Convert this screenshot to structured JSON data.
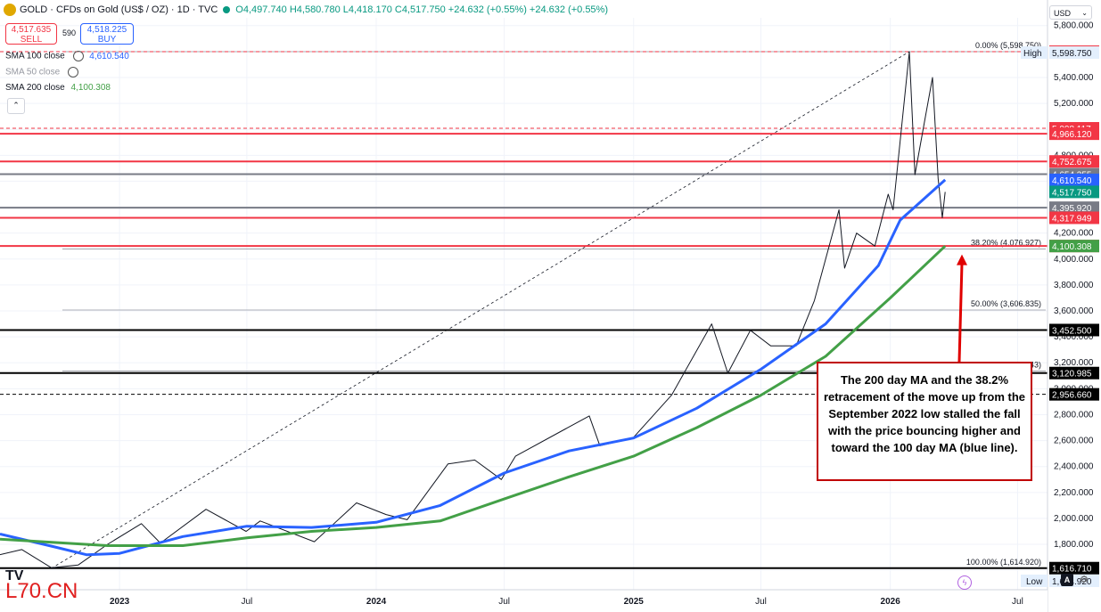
{
  "header": {
    "symbol_line": "GOLD · CFDs on Gold (US$ / OZ) · 1D · TVC",
    "ohlc": "O4,497.740 H4,580.780 L4,418.170 C4,517.750 +24.632 (+0.55%) +24.632 (+0.55%)",
    "sell_price": "4,517.635",
    "sell_label": "SELL",
    "spread": "590",
    "buy_price": "4,518.225",
    "buy_label": "BUY",
    "currency": "USD"
  },
  "indicators": [
    {
      "label": "SMA 100 close",
      "value": "4,610.540",
      "color": "#2962ff",
      "icon": "settings-icon"
    },
    {
      "label": "SMA 50 close",
      "value": "",
      "color": "#9598a1",
      "icon": "eye-off-icon"
    },
    {
      "label": "SMA 200 close",
      "value": "4,100.308",
      "color": "#43a047",
      "icon": ""
    }
  ],
  "annotation": "The 200 day MA and the 38.2% retracement of the move up from the September 2022 low stalled the fall with the price bouncing higher and toward the 100 day MA (blue line).",
  "watermark": "L70.CN",
  "logo_text": "TV",
  "colors": {
    "red": "#f23645",
    "blue": "#2962ff",
    "green": "#43a047",
    "black": "#000000",
    "grey": "#787b86"
  },
  "chart_data": {
    "type": "line",
    "title": "GOLD · CFDs on Gold (US$ / OZ) · 1D · TVC",
    "x_ticks": [
      "2023",
      "Jul",
      "2024",
      "Jul",
      "2025",
      "Jul",
      "2026",
      "Jul"
    ],
    "x_ticks_date": [
      "2023-01-01",
      "2023-07-01",
      "2024-01-01",
      "2024-07-01",
      "2025-01-01",
      "2025-07-01",
      "2026-01-01",
      "2026-07-01"
    ],
    "x_range": [
      "2022-07-15",
      "2026-08-10"
    ],
    "y_ticks": [
      1400,
      1600,
      1800,
      2000,
      2200,
      2400,
      2600,
      2800,
      3000,
      3200,
      3400,
      3600,
      3800,
      4000,
      4200,
      4400,
      4600,
      4800,
      5000,
      5200,
      5400,
      5600,
      5800
    ],
    "ylim": [
      1450,
      5860
    ],
    "grid": true,
    "series": [
      {
        "name": "GOLD",
        "color": "#131722",
        "x": [
          "2022-07-15",
          "2022-08-15",
          "2022-09-26",
          "2022-11-03",
          "2022-12-15",
          "2023-02-01",
          "2023-02-28",
          "2023-05-04",
          "2023-06-30",
          "2023-07-20",
          "2023-10-05",
          "2023-12-04",
          "2024-01-15",
          "2024-02-14",
          "2024-04-12",
          "2024-05-20",
          "2024-06-27",
          "2024-07-17",
          "2024-09-26",
          "2024-10-30",
          "2024-11-14",
          "2024-12-31",
          "2025-02-24",
          "2025-04-22",
          "2025-05-15",
          "2025-06-16",
          "2025-07-15",
          "2025-08-20",
          "2025-09-15",
          "2025-10-20",
          "2025-10-28",
          "2025-11-14",
          "2025-12-10",
          "2025-12-29",
          "2026-01-05",
          "2026-01-28",
          "2026-02-05",
          "2026-02-20",
          "2026-03-02",
          "2026-03-10",
          "2026-03-16",
          "2026-03-20"
        ],
        "values": [
          1720,
          1760,
          1620,
          1640,
          1800,
          1960,
          1810,
          2070,
          1900,
          1980,
          1820,
          2120,
          2030,
          1990,
          2420,
          2450,
          2300,
          2480,
          2690,
          2790,
          2560,
          2620,
          2950,
          3500,
          3120,
          3450,
          3330,
          3330,
          3680,
          4380,
          3930,
          4200,
          4100,
          4500,
          4380,
          5598.75,
          4650,
          5100,
          5400,
          4620,
          4318,
          4517.75
        ]
      },
      {
        "name": "SMA 100 close",
        "color": "#2962ff",
        "x": [
          "2022-07-15",
          "2022-10-01",
          "2022-11-15",
          "2023-01-01",
          "2023-04-01",
          "2023-07-01",
          "2023-10-01",
          "2024-01-01",
          "2024-04-01",
          "2024-07-01",
          "2024-10-01",
          "2025-01-01",
          "2025-04-01",
          "2025-07-01",
          "2025-10-01",
          "2025-12-15",
          "2026-01-15",
          "2026-03-20"
        ],
        "values": [
          1880,
          1780,
          1720,
          1730,
          1860,
          1940,
          1930,
          1970,
          2100,
          2350,
          2520,
          2620,
          2850,
          3150,
          3500,
          3950,
          4300,
          4610.54
        ]
      },
      {
        "name": "SMA 200 close",
        "color": "#43a047",
        "x": [
          "2022-07-15",
          "2022-12-15",
          "2023-04-01",
          "2023-07-01",
          "2023-10-01",
          "2024-01-01",
          "2024-04-01",
          "2024-07-01",
          "2024-10-01",
          "2025-01-01",
          "2025-04-01",
          "2025-07-01",
          "2025-10-01",
          "2026-01-01",
          "2026-03-20"
        ],
        "values": [
          1840,
          1790,
          1790,
          1850,
          1900,
          1930,
          1980,
          2150,
          2320,
          2480,
          2700,
          2950,
          3250,
          3700,
          4100.308
        ]
      }
    ],
    "horizontal_lines": [
      {
        "value": 5598.75,
        "label": "5,598.750",
        "color": "#f23645",
        "style": "dashed"
      },
      {
        "value": 5008.117,
        "label": "5,008.117",
        "color": "#f23645",
        "style": "dashed-thin"
      },
      {
        "value": 4966.12,
        "label": "4,966.120",
        "color": "#f23645",
        "style": "solid"
      },
      {
        "value": 4752.675,
        "label": "4,752.675",
        "color": "#f23645",
        "style": "solid"
      },
      {
        "value": 4654.355,
        "label": "4,654.355",
        "color": "#787b86",
        "style": "solid"
      },
      {
        "value": 4395.92,
        "label": "4,395.920",
        "color": "#787b86",
        "style": "solid"
      },
      {
        "value": 4317.949,
        "label": "4,317.949",
        "color": "#f23645",
        "style": "solid"
      },
      {
        "value": 4100.417,
        "label": "4,100.417",
        "color": "#f23645",
        "style": "solid"
      },
      {
        "value": 3452.5,
        "label": "3,452.500",
        "color": "#000000",
        "style": "solid"
      },
      {
        "value": 3120.985,
        "label": "3,120.985",
        "color": "#000000",
        "style": "solid"
      },
      {
        "value": 2956.66,
        "label": "2,956.660",
        "color": "#000000",
        "style": "dashed"
      },
      {
        "value": 1616.71,
        "label": "1,616.710",
        "color": "#000000",
        "style": "solid"
      }
    ],
    "price_tags": [
      {
        "value": 4610.54,
        "label": "4,610.540",
        "color": "#2962ff"
      },
      {
        "value": 4517.75,
        "label": "4,517.750",
        "color": "#089981"
      },
      {
        "value": 4100.308,
        "label": "4,100.308",
        "color": "#43a047"
      }
    ],
    "high": {
      "label": "High",
      "value": 5598.75,
      "value_label": "5,598.750"
    },
    "low": {
      "label": "Low",
      "value": 1614.92,
      "value_label": "1,614.920"
    },
    "fibonacci": [
      {
        "label": "0.00% (5,598.750)",
        "value": 5598.75
      },
      {
        "label": "38.20% (4,076.927)",
        "value": 4076.927
      },
      {
        "label": "50.00% (3,606.835)",
        "value": 3606.835
      },
      {
        "label": "61.80% (3,136.743)",
        "value": 3136.743
      },
      {
        "label": "100.00% (1,614.920)",
        "value": 1614.92
      }
    ],
    "trendline": {
      "from": [
        "2022-09-26",
        1614.92
      ],
      "to": [
        "2026-01-28",
        5598.75
      ]
    }
  }
}
